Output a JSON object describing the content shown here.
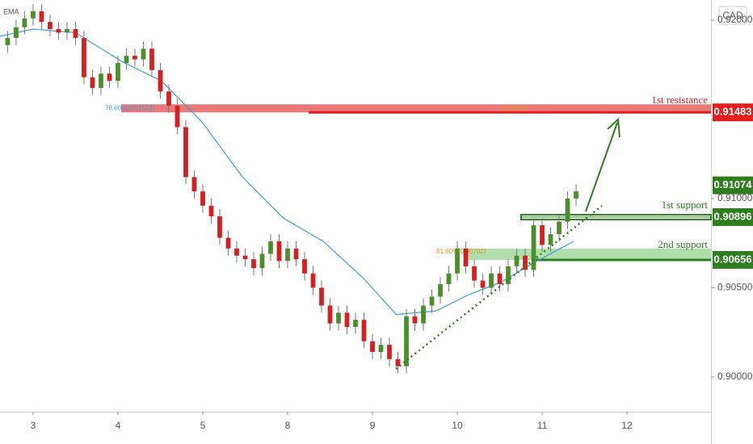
{
  "chart_data": {
    "type": "candlestick",
    "ema_label": "EMA",
    "currency": "CAD",
    "xlim": [
      -0.39,
      7.99
    ],
    "ylim": [
      0.89805,
      0.92113
    ],
    "xticks": [
      {
        "value": 0,
        "label": "3"
      },
      {
        "value": 1,
        "label": "4"
      },
      {
        "value": 2,
        "label": "5"
      },
      {
        "value": 3,
        "label": "8"
      },
      {
        "value": 4,
        "label": "9"
      },
      {
        "value": 5,
        "label": "10"
      },
      {
        "value": 6,
        "label": "11"
      },
      {
        "value": 7,
        "label": "12"
      }
    ],
    "yticks": [
      {
        "value": 0.9,
        "label": "0.90000"
      },
      {
        "value": 0.905,
        "label": "0.90500"
      },
      {
        "value": 0.91,
        "label": "0.91000"
      },
      {
        "value": 0.92,
        "label": "0.92000"
      }
    ],
    "up_color": "#4a8f2a",
    "down_color": "#d42020",
    "candles": [
      [
        -0.3,
        0.9186,
        0.9194,
        0.9182,
        0.919
      ],
      [
        -0.2,
        0.919,
        0.92,
        0.9186,
        0.9196
      ],
      [
        -0.1,
        0.9196,
        0.9205,
        0.9192,
        0.9201
      ],
      [
        0.0,
        0.9201,
        0.9209,
        0.9197,
        0.9205
      ],
      [
        0.1,
        0.9205,
        0.9209,
        0.9195,
        0.9199
      ],
      [
        0.2,
        0.9199,
        0.9203,
        0.9191,
        0.9195
      ],
      [
        0.3,
        0.9195,
        0.9199,
        0.9189,
        0.9193
      ],
      [
        0.4,
        0.9193,
        0.9199,
        0.9189,
        0.9195
      ],
      [
        0.5,
        0.9195,
        0.9199,
        0.9186,
        0.919
      ],
      [
        0.6,
        0.919,
        0.9194,
        0.9164,
        0.9168
      ],
      [
        0.7,
        0.9168,
        0.9172,
        0.9158,
        0.9162
      ],
      [
        0.8,
        0.9162,
        0.9174,
        0.9158,
        0.917
      ],
      [
        0.9,
        0.917,
        0.9174,
        0.9162,
        0.9166
      ],
      [
        1.0,
        0.9166,
        0.918,
        0.9162,
        0.9176
      ],
      [
        1.1,
        0.9176,
        0.9184,
        0.9172,
        0.918
      ],
      [
        1.2,
        0.918,
        0.9184,
        0.9174,
        0.9178
      ],
      [
        1.3,
        0.9178,
        0.9188,
        0.9174,
        0.9184
      ],
      [
        1.4,
        0.9184,
        0.9188,
        0.9168,
        0.9172
      ],
      [
        1.5,
        0.9172,
        0.9176,
        0.9156,
        0.916
      ],
      [
        1.6,
        0.916,
        0.9164,
        0.9148,
        0.9152
      ],
      [
        1.7,
        0.9152,
        0.9156,
        0.9136,
        0.914
      ],
      [
        1.8,
        0.914,
        0.9144,
        0.9108,
        0.9112
      ],
      [
        1.9,
        0.9112,
        0.9116,
        0.91,
        0.9104
      ],
      [
        2.0,
        0.9104,
        0.9108,
        0.9092,
        0.9096
      ],
      [
        2.1,
        0.9096,
        0.91,
        0.9086,
        0.909
      ],
      [
        2.2,
        0.909,
        0.9094,
        0.9074,
        0.9078
      ],
      [
        2.3,
        0.9078,
        0.9082,
        0.9068,
        0.9072
      ],
      [
        2.4,
        0.9072,
        0.9076,
        0.9064,
        0.9068
      ],
      [
        2.5,
        0.9068,
        0.9072,
        0.9062,
        0.9066
      ],
      [
        2.6,
        0.9066,
        0.907,
        0.9057,
        0.9061
      ],
      [
        2.7,
        0.9061,
        0.9073,
        0.9057,
        0.9069
      ],
      [
        2.8,
        0.9069,
        0.908,
        0.9065,
        0.9076
      ],
      [
        2.9,
        0.9076,
        0.908,
        0.9061,
        0.9065
      ],
      [
        3.0,
        0.9065,
        0.9076,
        0.9061,
        0.9072
      ],
      [
        3.1,
        0.9072,
        0.9076,
        0.9062,
        0.9066
      ],
      [
        3.2,
        0.9066,
        0.907,
        0.9054,
        0.9058
      ],
      [
        3.3,
        0.9058,
        0.9062,
        0.9046,
        0.905
      ],
      [
        3.4,
        0.905,
        0.9054,
        0.9036,
        0.904
      ],
      [
        3.5,
        0.904,
        0.9044,
        0.9026,
        0.903
      ],
      [
        3.6,
        0.903,
        0.904,
        0.9026,
        0.9036
      ],
      [
        3.7,
        0.9036,
        0.904,
        0.9024,
        0.9028
      ],
      [
        3.8,
        0.9028,
        0.9036,
        0.9024,
        0.9032
      ],
      [
        3.9,
        0.9032,
        0.9036,
        0.9016,
        0.902
      ],
      [
        4.0,
        0.902,
        0.9024,
        0.901,
        0.9014
      ],
      [
        4.1,
        0.9014,
        0.9022,
        0.901,
        0.9018
      ],
      [
        4.2,
        0.9018,
        0.9022,
        0.9006,
        0.901
      ],
      [
        4.3,
        0.901,
        0.9014,
        0.9002,
        0.9006
      ],
      [
        4.4,
        0.9006,
        0.9038,
        0.9002,
        0.9034
      ],
      [
        4.5,
        0.9034,
        0.9038,
        0.9026,
        0.903
      ],
      [
        4.6,
        0.903,
        0.9044,
        0.9026,
        0.904
      ],
      [
        4.7,
        0.904,
        0.9049,
        0.9036,
        0.9045
      ],
      [
        4.8,
        0.9045,
        0.9056,
        0.9041,
        0.9052
      ],
      [
        4.9,
        0.9052,
        0.9062,
        0.9048,
        0.9058
      ],
      [
        5.0,
        0.9058,
        0.9076,
        0.9054,
        0.9072
      ],
      [
        5.1,
        0.9072,
        0.9076,
        0.9058,
        0.9062
      ],
      [
        5.2,
        0.9062,
        0.9066,
        0.905,
        0.9054
      ],
      [
        5.3,
        0.9054,
        0.9058,
        0.9046,
        0.905
      ],
      [
        5.4,
        0.905,
        0.9062,
        0.9046,
        0.9058
      ],
      [
        5.5,
        0.9058,
        0.9062,
        0.9048,
        0.9052
      ],
      [
        5.6,
        0.9052,
        0.9066,
        0.9048,
        0.9062
      ],
      [
        5.7,
        0.9062,
        0.9072,
        0.9058,
        0.9068
      ],
      [
        5.8,
        0.9068,
        0.9072,
        0.9056,
        0.906
      ],
      [
        5.9,
        0.906,
        0.9089,
        0.9056,
        0.9085
      ],
      [
        6.0,
        0.9085,
        0.9089,
        0.907,
        0.9074
      ],
      [
        6.1,
        0.9074,
        0.9084,
        0.907,
        0.908
      ],
      [
        6.2,
        0.908,
        0.9091,
        0.9076,
        0.9087
      ],
      [
        6.3,
        0.9087,
        0.9104,
        0.9083,
        0.91
      ],
      [
        6.4,
        0.91,
        0.9108,
        0.9096,
        0.9104
      ]
    ],
    "ema": {
      "color": "#3fa0d8",
      "x": [
        -0.39,
        0,
        0.5,
        1.04,
        1.51,
        1.99,
        2.47,
        2.95,
        3.42,
        3.9,
        4.28,
        4.75,
        5.13,
        5.51,
        5.9,
        6.37
      ],
      "values": [
        0.9191,
        0.9195,
        0.9193,
        0.9177,
        0.9166,
        0.9143,
        0.9112,
        0.9089,
        0.9076,
        0.9055,
        0.9035,
        0.9037,
        0.9046,
        0.9053,
        0.9064,
        0.9076
      ]
    },
    "levels": [
      {
        "label": "1st resistance",
        "value": 0.91483,
        "color": "#e02020"
      },
      {
        "label": "1st support",
        "value": 0.90896,
        "color": "#2e7d1e"
      },
      {
        "label": "2nd support",
        "value": 0.90656,
        "color": "#2e7d1e"
      }
    ],
    "last_price": 0.91074,
    "last_color": "#2e7d1e",
    "annotations": [
      "78.60%(0.91518)",
      "100.00%",
      "61.80%(0.90702)"
    ]
  }
}
